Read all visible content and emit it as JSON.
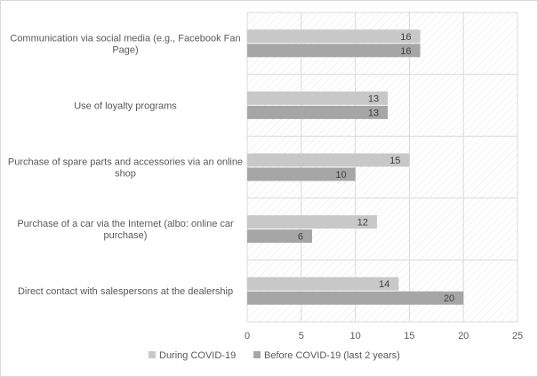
{
  "chart_data": {
    "type": "bar",
    "orientation": "horizontal",
    "categories": [
      [
        "Communication via social media (e.g., Facebook Fan",
        "Page)"
      ],
      [
        "Use of loyalty programs"
      ],
      [
        "Purchase of spare parts and accessories via an online",
        "shop"
      ],
      [
        "Purchase of a car via the Internet (albo: online car",
        "purchase)"
      ],
      [
        "Direct contact with salespersons at the dealership"
      ]
    ],
    "series": [
      {
        "name": "During COVID-19",
        "values": [
          16,
          13,
          15,
          12,
          14
        ],
        "color": "#c8c8c8"
      },
      {
        "name": "Before COVID-19 (last 2 years)",
        "values": [
          16,
          13,
          10,
          6,
          20
        ],
        "color": "#a6a6a6"
      }
    ],
    "xlim": [
      0,
      25
    ],
    "xticks": [
      0,
      5,
      10,
      15,
      20,
      25
    ],
    "title": "",
    "xlabel": "",
    "ylabel": "",
    "grid": "vertical",
    "legend": "bottom"
  }
}
